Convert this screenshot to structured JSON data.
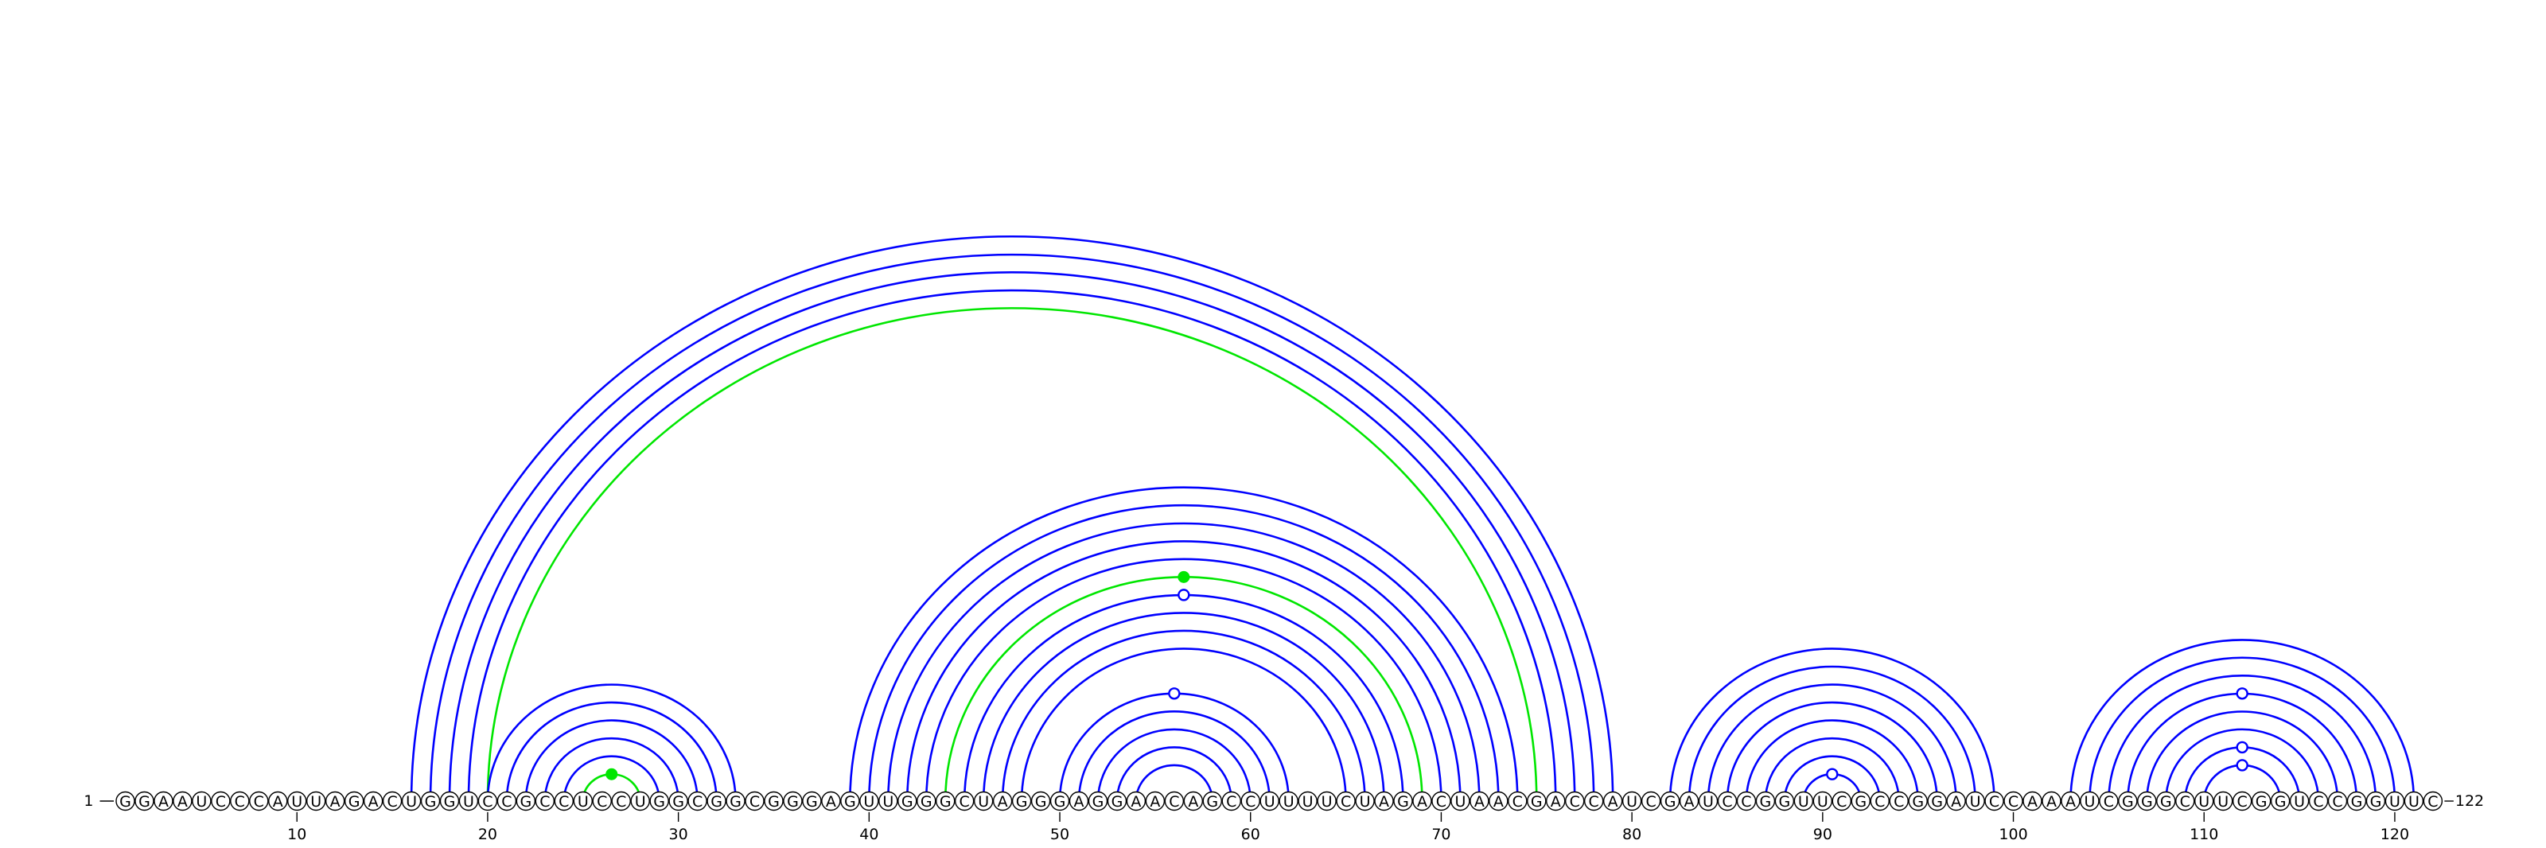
{
  "sequence": "GGAAUCCCAUUAGACUGGUCCGCCUCCUGGCGGCGGGAGUUGGGCUAGGGAGGAACAGCCUUUUCUAGACUAACGACCAUCGAUCCGGUUCGCCGGAUCCAAAUCGGGCUUCGGUCCGGUUC",
  "start_label": "1",
  "end_label": "122",
  "ticks": [
    10,
    20,
    30,
    40,
    50,
    60,
    70,
    80,
    90,
    100,
    110,
    120
  ],
  "colors": {
    "blue": "#0000ff",
    "green": "#00e600",
    "text": "#000000"
  },
  "base_pairs": [
    {
      "i": 16,
      "j": 79,
      "color": "blue"
    },
    {
      "i": 17,
      "j": 78,
      "color": "blue"
    },
    {
      "i": 18,
      "j": 77,
      "color": "blue"
    },
    {
      "i": 19,
      "j": 76,
      "color": "blue"
    },
    {
      "i": 20,
      "j": 75,
      "color": "green"
    },
    {
      "i": 20,
      "j": 33,
      "color": "blue"
    },
    {
      "i": 21,
      "j": 32,
      "color": "blue"
    },
    {
      "i": 22,
      "j": 31,
      "color": "blue"
    },
    {
      "i": 23,
      "j": 30,
      "color": "blue"
    },
    {
      "i": 24,
      "j": 29,
      "color": "blue"
    },
    {
      "i": 25,
      "j": 28,
      "color": "green"
    },
    {
      "i": 39,
      "j": 74,
      "color": "blue"
    },
    {
      "i": 40,
      "j": 73,
      "color": "blue"
    },
    {
      "i": 41,
      "j": 72,
      "color": "blue"
    },
    {
      "i": 42,
      "j": 71,
      "color": "blue"
    },
    {
      "i": 43,
      "j": 70,
      "color": "blue"
    },
    {
      "i": 44,
      "j": 69,
      "color": "green"
    },
    {
      "i": 45,
      "j": 68,
      "color": "blue"
    },
    {
      "i": 46,
      "j": 67,
      "color": "blue"
    },
    {
      "i": 47,
      "j": 66,
      "color": "blue"
    },
    {
      "i": 48,
      "j": 65,
      "color": "blue"
    },
    {
      "i": 50,
      "j": 62,
      "color": "blue"
    },
    {
      "i": 51,
      "j": 61,
      "color": "blue"
    },
    {
      "i": 52,
      "j": 60,
      "color": "blue"
    },
    {
      "i": 53,
      "j": 59,
      "color": "blue"
    },
    {
      "i": 54,
      "j": 58,
      "color": "blue"
    },
    {
      "i": 82,
      "j": 99,
      "color": "blue"
    },
    {
      "i": 83,
      "j": 98,
      "color": "blue"
    },
    {
      "i": 84,
      "j": 97,
      "color": "blue"
    },
    {
      "i": 85,
      "j": 96,
      "color": "blue"
    },
    {
      "i": 86,
      "j": 95,
      "color": "blue"
    },
    {
      "i": 87,
      "j": 94,
      "color": "blue"
    },
    {
      "i": 88,
      "j": 93,
      "color": "blue"
    },
    {
      "i": 89,
      "j": 92,
      "color": "blue"
    },
    {
      "i": 103,
      "j": 121,
      "color": "blue"
    },
    {
      "i": 104,
      "j": 120,
      "color": "blue"
    },
    {
      "i": 105,
      "j": 119,
      "color": "blue"
    },
    {
      "i": 106,
      "j": 118,
      "color": "blue"
    },
    {
      "i": 107,
      "j": 117,
      "color": "blue"
    },
    {
      "i": 108,
      "j": 116,
      "color": "blue"
    },
    {
      "i": 109,
      "j": 115,
      "color": "blue"
    },
    {
      "i": 110,
      "j": 114,
      "color": "blue"
    }
  ],
  "markers": [
    {
      "i": 25,
      "j": 28,
      "color": "green",
      "fill": true
    },
    {
      "i": 44,
      "j": 69,
      "color": "green",
      "fill": true
    },
    {
      "i": 45,
      "j": 68,
      "color": "blue",
      "fill": false
    },
    {
      "i": 50,
      "j": 62,
      "color": "blue",
      "fill": false
    },
    {
      "i": 89,
      "j": 92,
      "color": "blue",
      "fill": false
    },
    {
      "i": 110,
      "j": 114,
      "color": "blue",
      "fill": false
    },
    {
      "i": 109,
      "j": 115,
      "color": "blue",
      "fill": false
    },
    {
      "i": 106,
      "j": 118,
      "color": "blue",
      "fill": false
    }
  ]
}
